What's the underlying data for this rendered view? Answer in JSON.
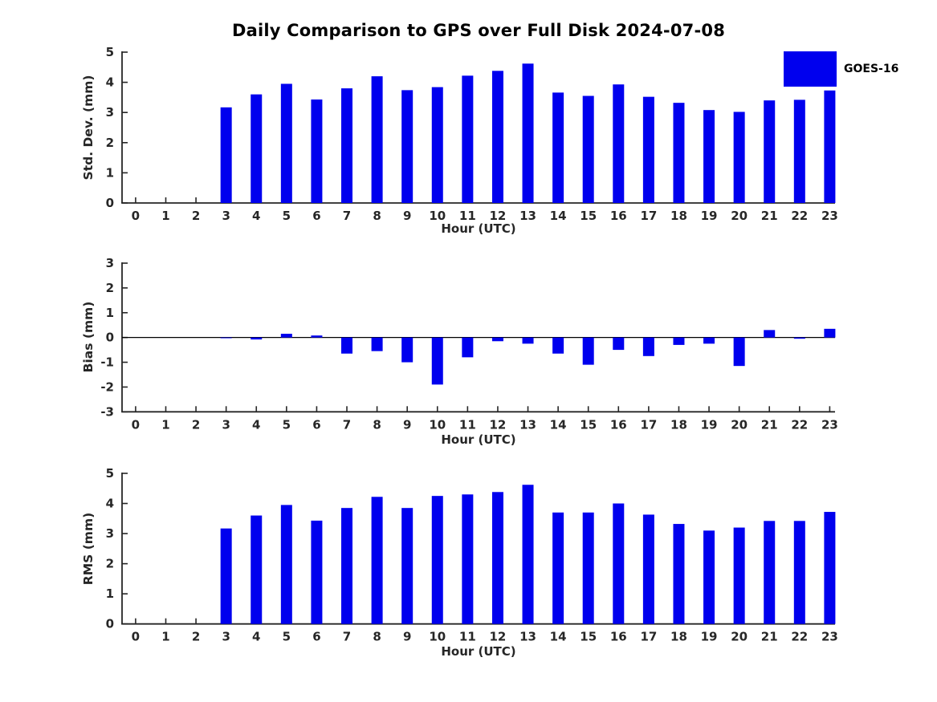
{
  "title": "Daily Comparison to GPS over Full Disk 2024-07-08",
  "xlabel": "Hour (UTC)",
  "legend": {
    "label": "GOES-16",
    "color": "#0000ee",
    "position": "top-right"
  },
  "colors": {
    "bar": "#0000ee",
    "axis": "#262626",
    "text": "#262626",
    "title": "#000000"
  },
  "chart_data": [
    {
      "name": "std-dev",
      "type": "bar",
      "title": "",
      "ylabel": "Std. Dev. (mm)",
      "xlabel": "Hour (UTC)",
      "ylim": [
        0,
        5
      ],
      "yticks": [
        0,
        1,
        2,
        3,
        4,
        5
      ],
      "grid": false,
      "zero_line": false,
      "categories": [
        "0",
        "1",
        "2",
        "3",
        "4",
        "5",
        "6",
        "7",
        "8",
        "9",
        "10",
        "11",
        "12",
        "13",
        "14",
        "15",
        "16",
        "17",
        "18",
        "19",
        "20",
        "21",
        "22",
        "23"
      ],
      "series": [
        {
          "name": "GOES-16",
          "values": [
            null,
            null,
            null,
            3.17,
            3.6,
            3.95,
            3.43,
            3.8,
            4.2,
            3.74,
            3.84,
            4.22,
            4.38,
            4.62,
            3.66,
            3.55,
            3.93,
            3.52,
            3.32,
            3.08,
            3.02,
            3.4,
            3.42,
            3.73
          ]
        }
      ]
    },
    {
      "name": "bias",
      "type": "bar",
      "title": "",
      "ylabel": "Bias (mm)",
      "xlabel": "Hour (UTC)",
      "ylim": [
        -3,
        3
      ],
      "yticks": [
        -3,
        -2,
        -1,
        0,
        1,
        2,
        3
      ],
      "grid": false,
      "zero_line": true,
      "categories": [
        "0",
        "1",
        "2",
        "3",
        "4",
        "5",
        "6",
        "7",
        "8",
        "9",
        "10",
        "11",
        "12",
        "13",
        "14",
        "15",
        "16",
        "17",
        "18",
        "19",
        "20",
        "21",
        "22",
        "23"
      ],
      "series": [
        {
          "name": "GOES-16",
          "values": [
            null,
            null,
            null,
            -0.03,
            -0.08,
            0.15,
            0.08,
            -0.65,
            -0.55,
            -1.0,
            -1.9,
            -0.8,
            -0.15,
            -0.25,
            -0.65,
            -1.1,
            -0.5,
            -0.75,
            -0.3,
            -0.25,
            -1.15,
            0.3,
            -0.05,
            0.35
          ]
        }
      ]
    },
    {
      "name": "rms",
      "type": "bar",
      "title": "",
      "ylabel": "RMS (mm)",
      "xlabel": "Hour (UTC)",
      "ylim": [
        0,
        5
      ],
      "yticks": [
        0,
        1,
        2,
        3,
        4,
        5
      ],
      "grid": false,
      "zero_line": false,
      "categories": [
        "0",
        "1",
        "2",
        "3",
        "4",
        "5",
        "6",
        "7",
        "8",
        "9",
        "10",
        "11",
        "12",
        "13",
        "14",
        "15",
        "16",
        "17",
        "18",
        "19",
        "20",
        "21",
        "22",
        "23"
      ],
      "series": [
        {
          "name": "GOES-16",
          "values": [
            null,
            null,
            null,
            3.17,
            3.6,
            3.95,
            3.43,
            3.85,
            4.22,
            3.85,
            4.25,
            4.3,
            4.38,
            4.62,
            3.7,
            3.7,
            4.0,
            3.63,
            3.32,
            3.1,
            3.2,
            3.42,
            3.42,
            3.72
          ]
        }
      ]
    }
  ]
}
